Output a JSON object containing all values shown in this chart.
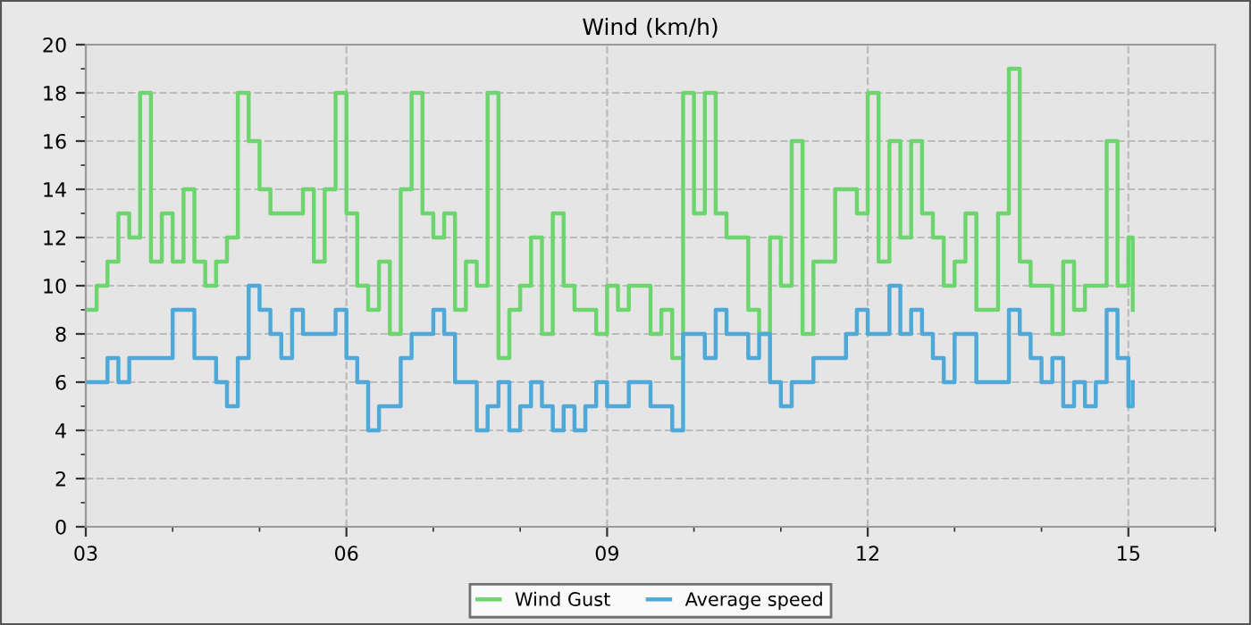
{
  "chart_data": {
    "type": "step",
    "title": "Wind (km/h)",
    "x": [
      3.0,
      3.125,
      3.25,
      3.375,
      3.5,
      3.625,
      3.75,
      3.875,
      4.0,
      4.125,
      4.25,
      4.375,
      4.5,
      4.625,
      4.75,
      4.875,
      5.0,
      5.125,
      5.25,
      5.375,
      5.5,
      5.625,
      5.75,
      5.875,
      6.0,
      6.125,
      6.25,
      6.375,
      6.5,
      6.625,
      6.75,
      6.875,
      7.0,
      7.125,
      7.25,
      7.375,
      7.5,
      7.625,
      7.75,
      7.875,
      8.0,
      8.125,
      8.25,
      8.375,
      8.5,
      8.625,
      8.75,
      8.875,
      9.0,
      9.125,
      9.25,
      9.375,
      9.5,
      9.625,
      9.75,
      9.875,
      10.0,
      10.125,
      10.25,
      10.375,
      10.5,
      10.625,
      10.75,
      10.875,
      11.0,
      11.125,
      11.25,
      11.375,
      11.5,
      11.625,
      11.75,
      11.875,
      12.0,
      12.125,
      12.25,
      12.375,
      12.5,
      12.625,
      12.75,
      12.875,
      13.0,
      13.125,
      13.25,
      13.375,
      13.5,
      13.625,
      13.75,
      13.875,
      14.0,
      14.125,
      14.25,
      14.375,
      14.5,
      14.625,
      14.75,
      14.875,
      15.0,
      15.05
    ],
    "series": [
      {
        "name": "Wind Gust",
        "color": "#6dd56d",
        "values": [
          9,
          10,
          11,
          13,
          12,
          18,
          11,
          13,
          11,
          14,
          11,
          10,
          11,
          12,
          18,
          16,
          14,
          13,
          13,
          13,
          14,
          11,
          14,
          18,
          13,
          10,
          9,
          11,
          8,
          14,
          18,
          13,
          12,
          13,
          9,
          11,
          10,
          18,
          7,
          9,
          10,
          12,
          8,
          13,
          10,
          9,
          9,
          8,
          10,
          9,
          10,
          10,
          8,
          9,
          7,
          18,
          13,
          18,
          13,
          12,
          12,
          9,
          8,
          12,
          10,
          16,
          8,
          11,
          11,
          14,
          14,
          13,
          18,
          11,
          16,
          12,
          16,
          13,
          12,
          10,
          11,
          13,
          9,
          9,
          13,
          19,
          11,
          10,
          10,
          8,
          11,
          9,
          10,
          10,
          16,
          10,
          12,
          9
        ]
      },
      {
        "name": "Average speed",
        "color": "#4ea8d8",
        "values": [
          6,
          6,
          7,
          6,
          7,
          7,
          7,
          7,
          9,
          9,
          7,
          7,
          6,
          5,
          7,
          10,
          9,
          8,
          7,
          9,
          8,
          8,
          8,
          9,
          7,
          6,
          4,
          5,
          5,
          7,
          8,
          8,
          9,
          8,
          6,
          6,
          4,
          5,
          6,
          4,
          5,
          6,
          5,
          4,
          5,
          4,
          5,
          6,
          5,
          5,
          6,
          6,
          5,
          5,
          4,
          8,
          8,
          7,
          9,
          8,
          8,
          7,
          8,
          6,
          5,
          6,
          6,
          7,
          7,
          7,
          8,
          9,
          8,
          8,
          10,
          8,
          9,
          8,
          7,
          6,
          8,
          8,
          6,
          6,
          6,
          9,
          8,
          7,
          6,
          7,
          5,
          6,
          5,
          6,
          9,
          7,
          5,
          6
        ]
      }
    ],
    "xlim": [
      3,
      16
    ],
    "xticks": [
      {
        "value": 3,
        "label": "03"
      },
      {
        "value": 4,
        "label": null
      },
      {
        "value": 5,
        "label": null
      },
      {
        "value": 6,
        "label": "06"
      },
      {
        "value": 7,
        "label": null
      },
      {
        "value": 8,
        "label": null
      },
      {
        "value": 9,
        "label": "09"
      },
      {
        "value": 10,
        "label": null
      },
      {
        "value": 11,
        "label": null
      },
      {
        "value": 12,
        "label": "12"
      },
      {
        "value": 13,
        "label": null
      },
      {
        "value": 14,
        "label": null
      },
      {
        "value": 15,
        "label": "15"
      },
      {
        "value": 16,
        "label": null
      }
    ],
    "ylim": [
      0,
      20
    ],
    "yticks": [
      0,
      {
        "value": 1,
        "label": null
      },
      2,
      {
        "value": 3,
        "label": null
      },
      4,
      {
        "value": 5,
        "label": null
      },
      6,
      {
        "value": 7,
        "label": null
      },
      8,
      {
        "value": 9,
        "label": null
      },
      10,
      {
        "value": 11,
        "label": null
      },
      12,
      {
        "value": 13,
        "label": null
      },
      14,
      {
        "value": 15,
        "label": null
      },
      16,
      {
        "value": 17,
        "label": null
      },
      18,
      {
        "value": 19,
        "label": null
      },
      20
    ],
    "grid": true,
    "legend": "bottom",
    "line_style": "solid",
    "marker": "none"
  }
}
